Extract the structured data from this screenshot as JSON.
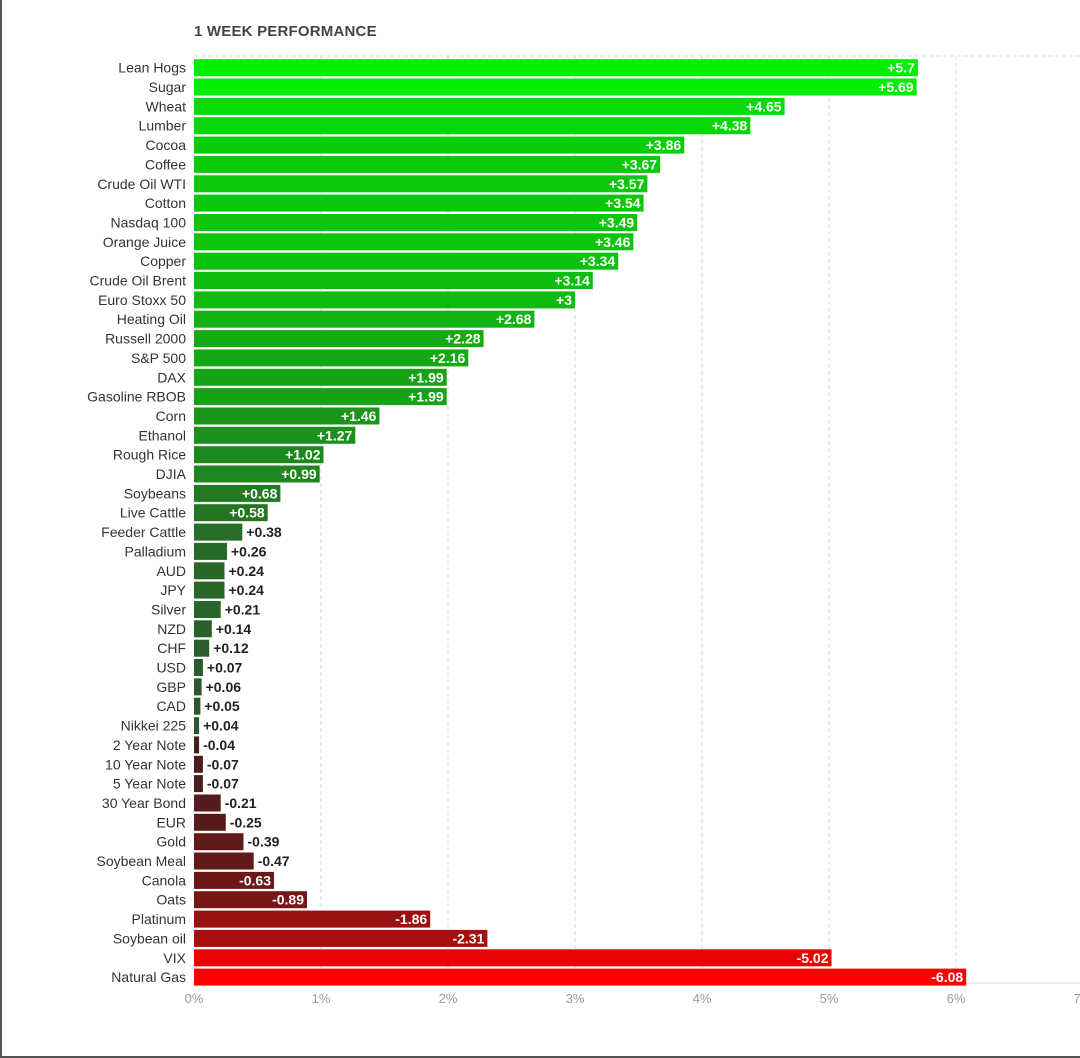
{
  "chart_data": {
    "type": "bar",
    "orientation": "horizontal",
    "title": "1 WEEK PERFORMANCE",
    "xlabel": "",
    "ylabel": "",
    "xlim": [
      0,
      7
    ],
    "grid": true,
    "x_tick_labels": [
      "0%",
      "1%",
      "2%",
      "3%",
      "4%",
      "5%",
      "6%",
      "7"
    ],
    "colors": {
      "positive_max": "#00ee00",
      "positive_min": "#2f4f2f",
      "negative_min": "#3a2020",
      "negative_max": "#ff0000",
      "label_inside": "#ffffff",
      "label_outside": "#222222",
      "tick_label": "#9a9a9a",
      "category_label": "#333333",
      "grid": "#d9d9d9"
    },
    "categories": [
      "Lean Hogs",
      "Sugar",
      "Wheat",
      "Lumber",
      "Cocoa",
      "Coffee",
      "Crude Oil WTI",
      "Cotton",
      "Nasdaq 100",
      "Orange Juice",
      "Copper",
      "Crude Oil Brent",
      "Euro Stoxx 50",
      "Heating Oil",
      "Russell 2000",
      "S&P 500",
      "DAX",
      "Gasoline RBOB",
      "Corn",
      "Ethanol",
      "Rough Rice",
      "DJIA",
      "Soybeans",
      "Live Cattle",
      "Feeder Cattle",
      "Palladium",
      "AUD",
      "JPY",
      "Silver",
      "NZD",
      "CHF",
      "USD",
      "GBP",
      "CAD",
      "Nikkei 225",
      "2 Year Note",
      "10 Year Note",
      "5 Year Note",
      "30 Year Bond",
      "EUR",
      "Gold",
      "Soybean Meal",
      "Canola",
      "Oats",
      "Platinum",
      "Soybean oil",
      "VIX",
      "Natural Gas"
    ],
    "values": [
      5.7,
      5.69,
      4.65,
      4.38,
      3.86,
      3.67,
      3.57,
      3.54,
      3.49,
      3.46,
      3.34,
      3.14,
      3,
      2.68,
      2.28,
      2.16,
      1.99,
      1.99,
      1.46,
      1.27,
      1.02,
      0.99,
      0.68,
      0.58,
      0.38,
      0.26,
      0.24,
      0.24,
      0.21,
      0.14,
      0.12,
      0.07,
      0.06,
      0.05,
      0.04,
      -0.04,
      -0.07,
      -0.07,
      -0.21,
      -0.25,
      -0.39,
      -0.47,
      -0.63,
      -0.89,
      -1.86,
      -2.31,
      -5.02,
      -6.08
    ],
    "value_labels": [
      "+5.7",
      "+5.69",
      "+4.65",
      "+4.38",
      "+3.86",
      "+3.67",
      "+3.57",
      "+3.54",
      "+3.49",
      "+3.46",
      "+3.34",
      "+3.14",
      "+3",
      "+2.68",
      "+2.28",
      "+2.16",
      "+1.99",
      "+1.99",
      "+1.46",
      "+1.27",
      "+1.02",
      "+0.99",
      "+0.68",
      "+0.58",
      "+0.38",
      "+0.26",
      "+0.24",
      "+0.24",
      "+0.21",
      "+0.14",
      "+0.12",
      "+0.07",
      "+0.06",
      "+0.05",
      "+0.04",
      "-0.04",
      "-0.07",
      "-0.07",
      "-0.21",
      "-0.25",
      "-0.39",
      "-0.47",
      "-0.63",
      "-0.89",
      "-1.86",
      "-2.31",
      "-5.02",
      "-6.08"
    ],
    "bar_length_note": "bars drawn by absolute value from the 0% baseline; color encodes sign"
  }
}
